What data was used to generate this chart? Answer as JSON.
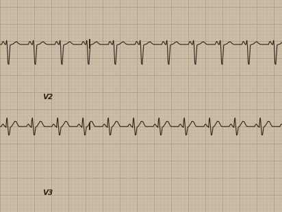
{
  "bg_color": "#cbbda8",
  "grid_minor_color": "#bfad98",
  "grid_major_color": "#a89880",
  "ecg_color": "#2e2218",
  "label_color": "#2e2218",
  "fig_width": 4.12,
  "fig_height": 3.1,
  "dpi": 100,
  "v2_label": "V2",
  "v3_label": "V3",
  "label_fontsize": 7.5,
  "line_width": 0.8
}
